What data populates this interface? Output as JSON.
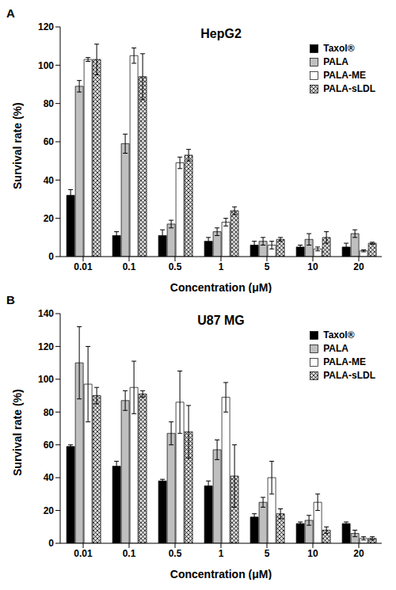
{
  "chart_data": [
    {
      "type": "bar",
      "annotations": [
        "A"
      ],
      "title": "HepG2",
      "x_label": "Concentration (μM)",
      "y_label": "Survival rate (%)",
      "categories": [
        "0.01",
        "0.1",
        "0.5",
        "1",
        "5",
        "10",
        "20"
      ],
      "series": [
        {
          "name": "Taxol®",
          "color": "#000000",
          "values": [
            32,
            11,
            11,
            8,
            6,
            5,
            5
          ],
          "errors": [
            3,
            2,
            3,
            2,
            2,
            1,
            2
          ]
        },
        {
          "name": "PALA",
          "color": "#bfbfbf",
          "values": [
            89,
            59,
            17,
            13,
            8,
            9,
            12
          ],
          "errors": [
            3,
            5,
            2,
            2,
            2,
            3,
            2
          ]
        },
        {
          "name": "PALA-ME",
          "color": "#ffffff",
          "values": [
            103,
            105,
            49,
            18,
            6,
            4,
            3
          ],
          "errors": [
            1,
            4,
            3,
            2,
            2,
            1,
            0.5
          ]
        },
        {
          "name": "PALA-sLDL",
          "color": "#d9d9d9",
          "values": [
            103,
            94,
            53,
            24,
            9,
            10,
            7
          ],
          "errors": [
            8,
            12,
            3,
            2,
            1,
            3,
            0.5
          ]
        }
      ],
      "ylim": [
        0,
        120
      ],
      "yticks": [
        0,
        20,
        40,
        60,
        80,
        100,
        120
      ],
      "grid": false,
      "legend": "upper right"
    },
    {
      "type": "bar",
      "annotations": [
        "B"
      ],
      "title": "U87 MG",
      "x_label": "Concentration (μM)",
      "y_label": "Survival rate (%)",
      "categories": [
        "0.01",
        "0.1",
        "0.5",
        "1",
        "5",
        "10",
        "20"
      ],
      "series": [
        {
          "name": "Taxol®",
          "color": "#000000",
          "values": [
            59,
            47,
            38,
            35,
            16,
            12,
            12
          ],
          "errors": [
            1,
            3,
            1,
            3,
            2,
            1,
            1
          ]
        },
        {
          "name": "PALA",
          "color": "#bfbfbf",
          "values": [
            110,
            87,
            67,
            57,
            25,
            14,
            6
          ],
          "errors": [
            22,
            6,
            7,
            6,
            3,
            3,
            2
          ]
        },
        {
          "name": "PALA-ME",
          "color": "#ffffff",
          "values": [
            97,
            95,
            86,
            89,
            40,
            25,
            3
          ],
          "errors": [
            23,
            16,
            19,
            9,
            10,
            5,
            1
          ]
        },
        {
          "name": "PALA-sLDL",
          "color": "#d9d9d9",
          "values": [
            90,
            91,
            68,
            41,
            18,
            8,
            3
          ],
          "errors": [
            5,
            2,
            16,
            19,
            3,
            2,
            1
          ]
        }
      ],
      "ylim": [
        0,
        140
      ],
      "yticks": [
        0,
        20,
        40,
        60,
        80,
        100,
        120,
        140
      ],
      "grid": false,
      "legend": "upper right"
    }
  ]
}
